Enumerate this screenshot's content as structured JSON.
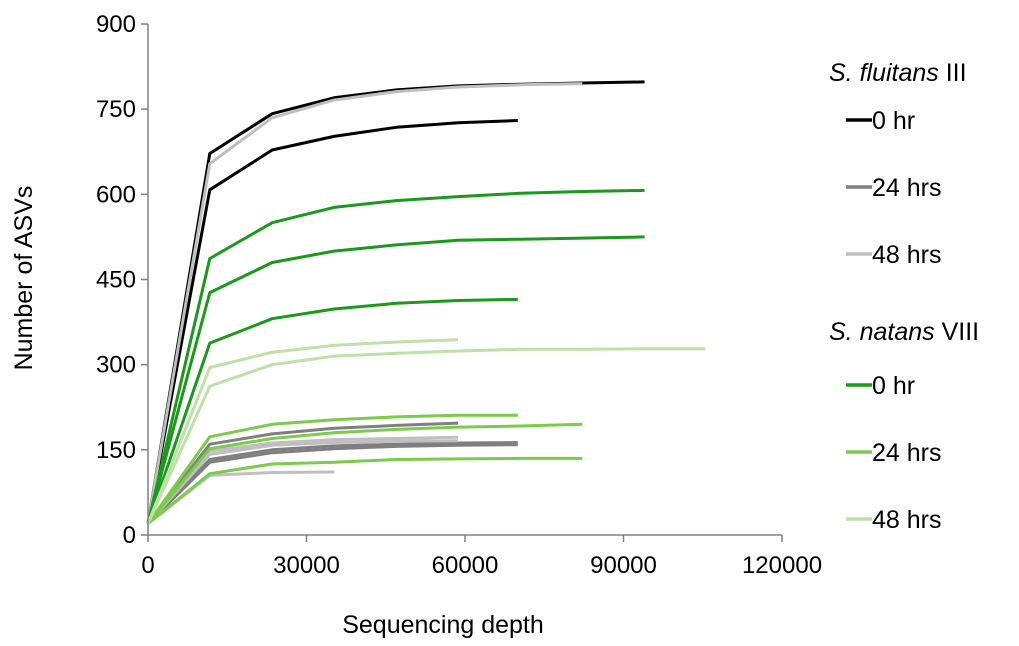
{
  "chart_data": {
    "type": "line",
    "title": "",
    "xlabel": "Sequencing depth",
    "ylabel": "Number of ASVs",
    "xlim": [
      0,
      120000
    ],
    "ylim": [
      0,
      900
    ],
    "xticks": [
      0,
      30000,
      60000,
      90000,
      120000
    ],
    "yticks": [
      0,
      150,
      300,
      450,
      600,
      750,
      900
    ],
    "grid": false,
    "legend_position": "right",
    "legend": [
      {
        "group_genus": "S. fluitans",
        "group_strain": "III",
        "entries": [
          {
            "label": "0 hr",
            "color": "#000000"
          },
          {
            "label": "24 hrs",
            "color": "#7f7f7f"
          },
          {
            "label": "48 hrs",
            "color": "#bfbfbf"
          }
        ]
      },
      {
        "group_genus": "S. natans",
        "group_strain": "VIII",
        "entries": [
          {
            "label": "0 hr",
            "color": "#1a9a1a"
          },
          {
            "label": "24 hrs",
            "color": "#7acc4a"
          },
          {
            "label": "48 hrs",
            "color": "#bfe0a8"
          }
        ]
      }
    ],
    "series": [
      {
        "color": "#000000",
        "width": 3,
        "points": [
          [
            0,
            20
          ],
          [
            11700,
            672
          ],
          [
            23500,
            742
          ],
          [
            35200,
            770
          ],
          [
            47000,
            784
          ],
          [
            58700,
            791
          ],
          [
            70500,
            794
          ],
          [
            82200,
            796
          ],
          [
            94000,
            798
          ]
        ]
      },
      {
        "color": "#000000",
        "width": 3,
        "points": [
          [
            0,
            20
          ],
          [
            11700,
            608
          ],
          [
            23500,
            678
          ],
          [
            35200,
            702
          ],
          [
            47000,
            718
          ],
          [
            58700,
            726
          ],
          [
            70000,
            730
          ]
        ]
      },
      {
        "color": "#7f7f7f",
        "width": 3,
        "points": [
          [
            0,
            20
          ],
          [
            11700,
            160
          ],
          [
            23500,
            178
          ],
          [
            35200,
            188
          ],
          [
            47000,
            193
          ],
          [
            58700,
            197
          ]
        ]
      },
      {
        "color": "#7f7f7f",
        "width": 3,
        "points": [
          [
            0,
            20
          ],
          [
            11700,
            133
          ],
          [
            23500,
            150
          ],
          [
            35200,
            157
          ],
          [
            47000,
            160
          ],
          [
            58700,
            162
          ],
          [
            70000,
            163
          ]
        ]
      },
      {
        "color": "#7f7f7f",
        "width": 3,
        "points": [
          [
            0,
            20
          ],
          [
            11700,
            128
          ],
          [
            23500,
            145
          ],
          [
            35200,
            152
          ],
          [
            47000,
            156
          ],
          [
            58700,
            158
          ],
          [
            70000,
            159
          ]
        ]
      },
      {
        "color": "#bfbfbf",
        "width": 3,
        "points": [
          [
            0,
            20
          ],
          [
            11700,
            654
          ],
          [
            23500,
            735
          ],
          [
            35200,
            766
          ],
          [
            47000,
            781
          ],
          [
            58700,
            789
          ],
          [
            70500,
            793
          ],
          [
            82200,
            795
          ]
        ]
      },
      {
        "color": "#bfbfbf",
        "width": 3,
        "points": [
          [
            0,
            20
          ],
          [
            11700,
            148
          ],
          [
            23500,
            162
          ],
          [
            35200,
            168
          ],
          [
            47000,
            170
          ],
          [
            58700,
            172
          ]
        ]
      },
      {
        "color": "#bfbfbf",
        "width": 3,
        "points": [
          [
            0,
            20
          ],
          [
            11700,
            142
          ],
          [
            23500,
            158
          ],
          [
            35200,
            163
          ],
          [
            47000,
            165
          ],
          [
            58700,
            166
          ]
        ]
      },
      {
        "color": "#bfbfbf",
        "width": 3,
        "points": [
          [
            0,
            20
          ],
          [
            11700,
            105
          ],
          [
            23500,
            110
          ],
          [
            35200,
            111
          ]
        ]
      },
      {
        "color": "#1a9a1a",
        "width": 3,
        "points": [
          [
            0,
            20
          ],
          [
            11700,
            487
          ],
          [
            23500,
            550
          ],
          [
            35200,
            577
          ],
          [
            47000,
            589
          ],
          [
            58700,
            596
          ],
          [
            70500,
            602
          ],
          [
            82200,
            605
          ],
          [
            94000,
            607
          ]
        ]
      },
      {
        "color": "#1a9a1a",
        "width": 3,
        "points": [
          [
            0,
            20
          ],
          [
            11700,
            427
          ],
          [
            23500,
            480
          ],
          [
            35200,
            500
          ],
          [
            47000,
            511
          ],
          [
            58700,
            519
          ],
          [
            70500,
            521
          ],
          [
            82200,
            523
          ],
          [
            94000,
            525
          ]
        ]
      },
      {
        "color": "#1a9a1a",
        "width": 3,
        "points": [
          [
            0,
            20
          ],
          [
            11700,
            338
          ],
          [
            23500,
            381
          ],
          [
            35200,
            398
          ],
          [
            47000,
            408
          ],
          [
            58700,
            413
          ],
          [
            70000,
            415
          ]
        ]
      },
      {
        "color": "#7acc4a",
        "width": 3,
        "points": [
          [
            0,
            20
          ],
          [
            11700,
            173
          ],
          [
            23500,
            195
          ],
          [
            35200,
            203
          ],
          [
            47000,
            208
          ],
          [
            58700,
            211
          ],
          [
            70000,
            211
          ]
        ]
      },
      {
        "color": "#7acc4a",
        "width": 3,
        "points": [
          [
            0,
            20
          ],
          [
            11700,
            152
          ],
          [
            23500,
            170
          ],
          [
            35200,
            180
          ],
          [
            47000,
            186
          ],
          [
            58700,
            190
          ],
          [
            70500,
            192
          ],
          [
            82200,
            195
          ]
        ]
      },
      {
        "color": "#7acc4a",
        "width": 3,
        "points": [
          [
            0,
            20
          ],
          [
            11700,
            108
          ],
          [
            23500,
            125
          ],
          [
            35200,
            128
          ],
          [
            47000,
            133
          ],
          [
            58700,
            134
          ],
          [
            70500,
            135
          ],
          [
            82200,
            135
          ]
        ]
      },
      {
        "color": "#bfe0a8",
        "width": 3,
        "points": [
          [
            0,
            20
          ],
          [
            11700,
            295
          ],
          [
            23500,
            322
          ],
          [
            35200,
            334
          ],
          [
            47000,
            340
          ],
          [
            58700,
            344
          ]
        ]
      },
      {
        "color": "#bfe0a8",
        "width": 3,
        "points": [
          [
            0,
            20
          ],
          [
            11700,
            262
          ],
          [
            23500,
            300
          ],
          [
            35200,
            315
          ],
          [
            47000,
            320
          ],
          [
            58700,
            324
          ],
          [
            70500,
            327
          ],
          [
            82200,
            327
          ],
          [
            94000,
            328
          ],
          [
            105500,
            328
          ]
        ]
      }
    ]
  }
}
